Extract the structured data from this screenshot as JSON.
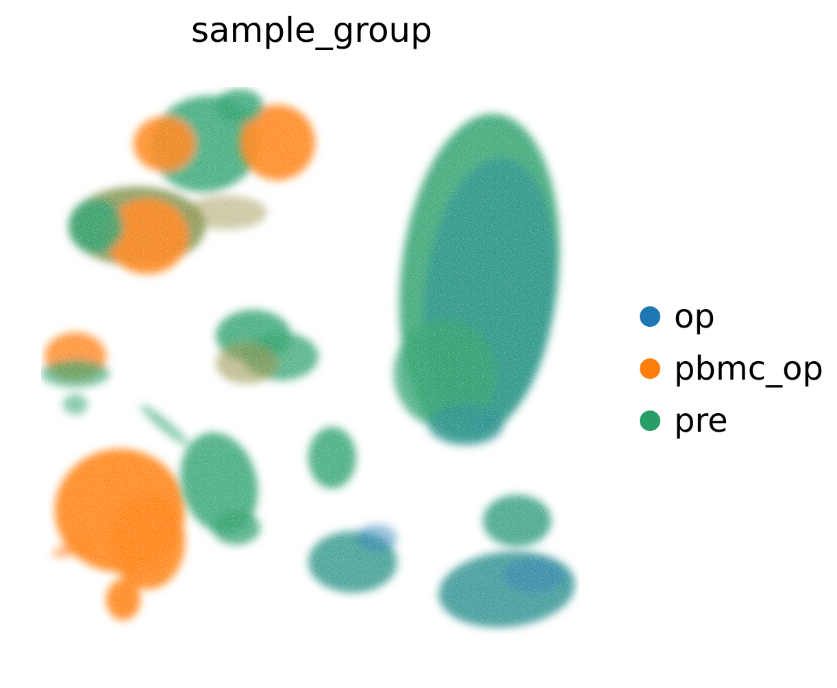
{
  "chart_data": {
    "type": "scatter",
    "title": "sample_group",
    "xlabel": "",
    "ylabel": "",
    "axes_visible": false,
    "grid": false,
    "legend_position": "right",
    "series": [
      {
        "name": "op",
        "color": "#1f77b4"
      },
      {
        "name": "pbmc_op",
        "color": "#ff7f0e"
      },
      {
        "name": "pre",
        "color": "#279e68"
      }
    ],
    "clusters": [
      {
        "id": "top-left-group",
        "x": -10.5,
        "y": 9.0,
        "composition": {
          "op": 0.05,
          "pbmc_op": 0.55,
          "pre": 0.4
        }
      },
      {
        "id": "upper-right-orange-lobe",
        "x": -8.0,
        "y": 10.0,
        "composition": {
          "op": 0.02,
          "pbmc_op": 0.8,
          "pre": 0.18
        }
      },
      {
        "id": "left-small-mixed",
        "x": -13.5,
        "y": 2.5,
        "composition": {
          "op": 0.05,
          "pbmc_op": 0.5,
          "pre": 0.45
        }
      },
      {
        "id": "center-green-blob",
        "x": -6.5,
        "y": 2.5,
        "composition": {
          "op": 0.1,
          "pbmc_op": 0.1,
          "pre": 0.8
        }
      },
      {
        "id": "bottom-left-orange",
        "x": -12.0,
        "y": -4.5,
        "composition": {
          "op": 0.0,
          "pbmc_op": 0.98,
          "pre": 0.02
        }
      },
      {
        "id": "bottom-left-green-arm",
        "x": -8.0,
        "y": -3.0,
        "composition": {
          "op": 0.1,
          "pbmc_op": 0.0,
          "pre": 0.9
        }
      },
      {
        "id": "small-center-green",
        "x": -2.0,
        "y": -2.0,
        "composition": {
          "op": 0.1,
          "pbmc_op": 0.0,
          "pre": 0.9
        }
      },
      {
        "id": "large-right-cluster",
        "x": 4.5,
        "y": 4.0,
        "composition": {
          "op": 0.45,
          "pbmc_op": 0.0,
          "pre": 0.55
        }
      },
      {
        "id": "bottom-center-cluster",
        "x": 0.0,
        "y": -7.0,
        "composition": {
          "op": 0.35,
          "pbmc_op": 0.0,
          "pre": 0.65
        }
      },
      {
        "id": "bottom-right-upper",
        "x": 6.0,
        "y": -5.5,
        "composition": {
          "op": 0.2,
          "pbmc_op": 0.0,
          "pre": 0.8
        }
      },
      {
        "id": "bottom-right-lower",
        "x": 6.0,
        "y": -8.0,
        "composition": {
          "op": 0.45,
          "pbmc_op": 0.0,
          "pre": 0.55
        }
      }
    ]
  }
}
